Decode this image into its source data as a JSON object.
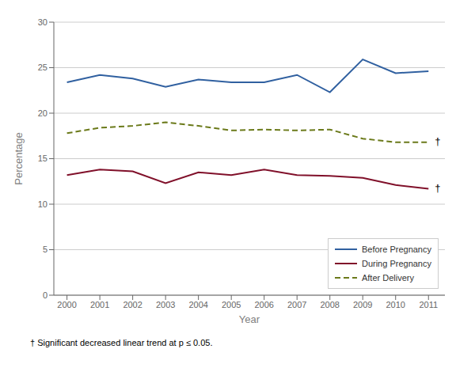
{
  "chart_data": {
    "type": "line",
    "xlabel": "Year",
    "ylabel": "Percentage",
    "x": [
      2000,
      2001,
      2002,
      2003,
      2004,
      2005,
      2006,
      2007,
      2008,
      2009,
      2010,
      2011
    ],
    "xlim": [
      1999.6,
      2011.5
    ],
    "xticks": [
      2000,
      2001,
      2002,
      2003,
      2004,
      2005,
      2006,
      2007,
      2008,
      2009,
      2010,
      2011
    ],
    "ylim": [
      0,
      30
    ],
    "yticks": [
      0,
      5,
      10,
      15,
      20,
      25,
      30
    ],
    "grid": true,
    "legend": "lower right",
    "series": [
      {
        "name": "Before Pregnancy",
        "color": "#3060A0",
        "line_style": "solid",
        "values": [
          23.4,
          24.2,
          23.8,
          22.9,
          23.7,
          23.4,
          23.4,
          24.2,
          22.3,
          25.9,
          24.4,
          24.6
        ]
      },
      {
        "name": "During Pregnancy",
        "color": "#80102A",
        "line_style": "solid",
        "values": [
          13.2,
          13.8,
          13.6,
          12.3,
          13.5,
          13.2,
          13.8,
          13.2,
          13.1,
          12.9,
          12.1,
          11.7
        ]
      },
      {
        "name": "After Delivery",
        "color": "#6B7A1A",
        "line_style": "dashed",
        "values": [
          17.8,
          18.4,
          18.6,
          19.0,
          18.6,
          18.1,
          18.2,
          18.1,
          18.2,
          17.2,
          16.8,
          16.8
        ]
      }
    ],
    "annotations": [
      {
        "text": "†",
        "x": 2011,
        "y": 16.8
      },
      {
        "text": "†",
        "x": 2011,
        "y": 11.7
      }
    ],
    "footnote": "† Significant decreased linear trend at p ≤ 0.05."
  }
}
